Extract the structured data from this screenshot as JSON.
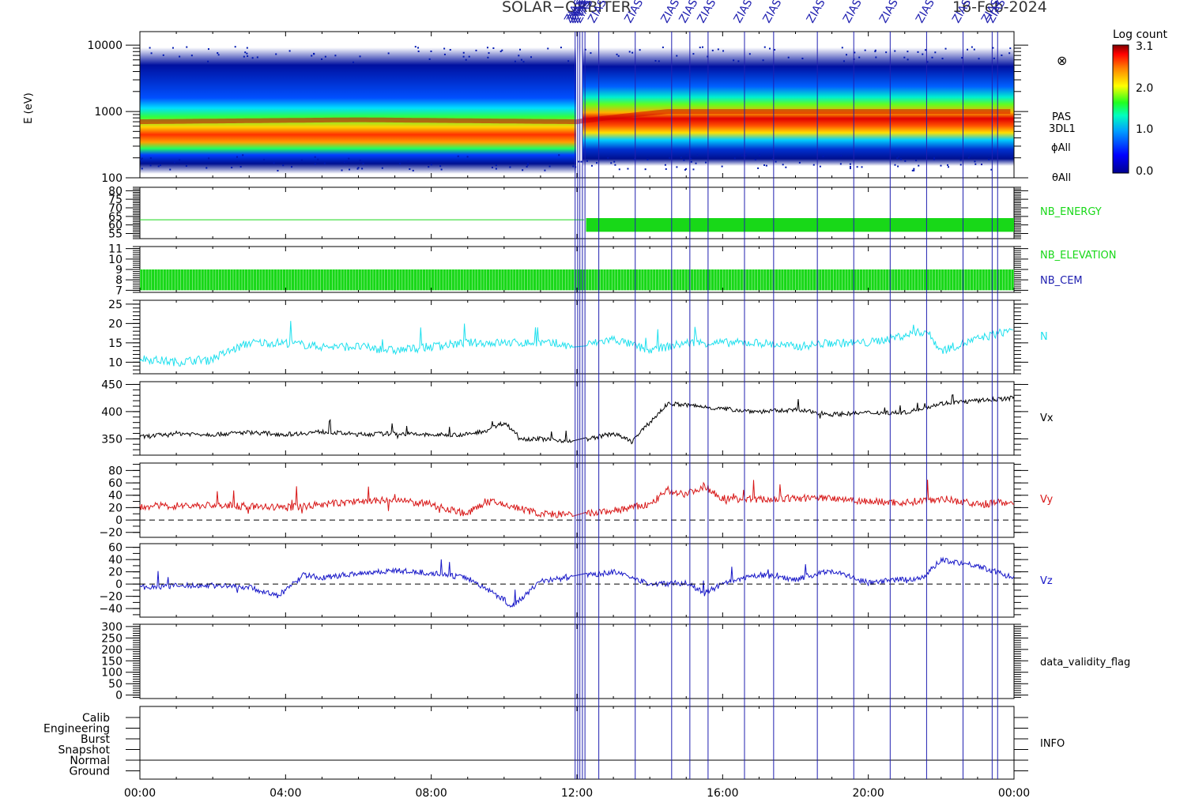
{
  "header": {
    "title_left": "SOLAR−ORBITER",
    "title_right": "16-Feb-2024",
    "event_marker_text": "ZIAS"
  },
  "time_axis": {
    "ticks": [
      "00:00",
      "04:00",
      "08:00",
      "12:00",
      "16:00",
      "20:00",
      "00:00"
    ]
  },
  "markers": {
    "color": "#2020b0",
    "event_hours": [
      11.95,
      12.02,
      12.08,
      12.15,
      12.22,
      12.6,
      13.6,
      14.6,
      15.1,
      15.6,
      16.6,
      17.4,
      18.6,
      19.6,
      20.6,
      21.6,
      22.6,
      23.4,
      23.55
    ]
  },
  "colorbar": {
    "title": "Log count",
    "ticks": [
      "3.1",
      "2.0",
      "1.0",
      "0.0"
    ],
    "min": 0.0,
    "max": 3.1
  },
  "panel_labels": {
    "spectrogram": [
      "PAS",
      "3DL1",
      "ϕAll",
      "θAll"
    ],
    "spectrogram_symbol": "⊗",
    "nb_energy": "NB_ENERGY",
    "nb_elevation": "NB_ELEVATION",
    "nb_cem": "NB_CEM",
    "n": "N",
    "vx": "Vx",
    "vy": "Vy",
    "vz": "Vz",
    "validity": "data_validity_flag",
    "info": "INFO"
  },
  "colors": {
    "nb_energy": "#18d818",
    "nb_elevation": "#18d818",
    "nb_cem": "#2020b0",
    "n": "#20e0ee",
    "vx": "#000000",
    "vy": "#d81818",
    "vz": "#1818c8",
    "frame": "#000000"
  },
  "chart_data": [
    {
      "type": "heatmap",
      "ylabel": "E (eV)",
      "yscale": "log",
      "ylim": [
        100,
        16000
      ],
      "yticks": [
        "10000",
        "1000",
        "100"
      ],
      "xlim_hours": [
        0,
        24
      ],
      "peak_energy_eV": {
        "hours": [
          0,
          6,
          12,
          14.5,
          24
        ],
        "values": [
          700,
          750,
          700,
          1000,
          1000
        ]
      },
      "grid": false
    },
    {
      "type": "line",
      "name": "NB_ENERGY",
      "ylim": [
        52,
        82
      ],
      "yticks": [
        "80",
        "75",
        "70",
        "65",
        "60",
        "55"
      ],
      "x_hours": [
        0,
        12.2,
        12.2,
        24
      ],
      "values": [
        63,
        63,
        58,
        63
      ],
      "note_after_12h": "oscillating 56-64"
    },
    {
      "type": "line",
      "name": "NB_ELEVATION",
      "ylim": [
        6.8,
        11.2
      ],
      "yticks": [
        "11",
        "10",
        "9",
        "8",
        "7"
      ],
      "oscillation_range": [
        7,
        9
      ],
      "x_hours": [
        0,
        24
      ]
    },
    {
      "type": "line",
      "name": "N",
      "ylim": [
        7,
        26
      ],
      "yticks": [
        "25",
        "20",
        "15",
        "10"
      ],
      "x_hours": [
        0,
        1,
        2,
        3,
        4,
        5,
        6,
        7,
        8,
        9,
        10,
        11,
        12,
        13,
        14,
        15,
        16,
        17,
        18,
        19,
        20,
        21,
        21.6,
        22,
        23,
        23.8,
        24
      ],
      "values": [
        11,
        10,
        11,
        15,
        15,
        14,
        14,
        13,
        14,
        15,
        15,
        15,
        14,
        16,
        13,
        15,
        15,
        15,
        14,
        15,
        15,
        17,
        18,
        13,
        16,
        18,
        19
      ]
    },
    {
      "type": "line",
      "name": "Vx",
      "ylim": [
        320,
        455
      ],
      "yticks": [
        "450",
        "400",
        "350"
      ],
      "x_hours": [
        0,
        1,
        2,
        3,
        4,
        5,
        6,
        7,
        8,
        9,
        9.5,
        10,
        10.5,
        11,
        12,
        13,
        13.5,
        14,
        14.5,
        15,
        16,
        17,
        18,
        19,
        20,
        21,
        22,
        23,
        24
      ],
      "values": [
        353,
        360,
        358,
        362,
        358,
        363,
        358,
        360,
        357,
        358,
        365,
        380,
        350,
        350,
        345,
        360,
        345,
        380,
        415,
        412,
        405,
        400,
        403,
        395,
        398,
        398,
        415,
        420,
        425
      ]
    },
    {
      "type": "line",
      "name": "Vy",
      "ylim": [
        -28,
        92
      ],
      "yticks": [
        "80",
        "60",
        "40",
        "20",
        "0",
        "−20"
      ],
      "reference_line": 0,
      "x_hours": [
        0,
        1,
        2,
        3,
        4,
        5,
        6,
        7,
        8,
        9,
        9.5,
        10,
        11,
        12,
        13,
        14,
        14.5,
        15,
        15.5,
        16,
        17,
        18,
        19,
        20,
        21,
        22,
        23,
        24
      ],
      "values": [
        22,
        23,
        24,
        22,
        20,
        25,
        30,
        32,
        25,
        10,
        30,
        25,
        10,
        8,
        15,
        25,
        48,
        42,
        55,
        35,
        33,
        35,
        36,
        30,
        28,
        35,
        25,
        30
      ]
    },
    {
      "type": "line",
      "name": "Vz",
      "ylim": [
        -54,
        66
      ],
      "yticks": [
        "60",
        "40",
        "20",
        "0",
        "−20",
        "−40"
      ],
      "reference_line": 0,
      "x_hours": [
        0,
        1,
        2,
        3,
        3.8,
        4.5,
        5,
        6,
        7,
        8,
        9,
        10,
        10.2,
        11,
        12,
        13,
        14,
        15,
        15.5,
        16,
        17,
        18,
        19,
        20,
        21,
        21.5,
        22,
        23,
        24
      ],
      "values": [
        -5,
        -3,
        -2,
        -5,
        -20,
        15,
        10,
        18,
        22,
        18,
        10,
        -25,
        -38,
        5,
        12,
        20,
        0,
        2,
        -15,
        0,
        15,
        8,
        22,
        2,
        8,
        10,
        40,
        30,
        10
      ]
    },
    {
      "type": "line",
      "name": "data_validity_flag",
      "ylim": [
        -15,
        310
      ],
      "yticks": [
        "300",
        "250",
        "200",
        "150",
        "100",
        "50",
        "0"
      ],
      "values": []
    },
    {
      "type": "line",
      "name": "INFO",
      "categories": [
        "Calib",
        "Engineering",
        "Burst",
        "Snapshot",
        "Normal",
        "Ground"
      ],
      "x_hours": [
        0,
        24
      ],
      "level": "Normal"
    }
  ]
}
